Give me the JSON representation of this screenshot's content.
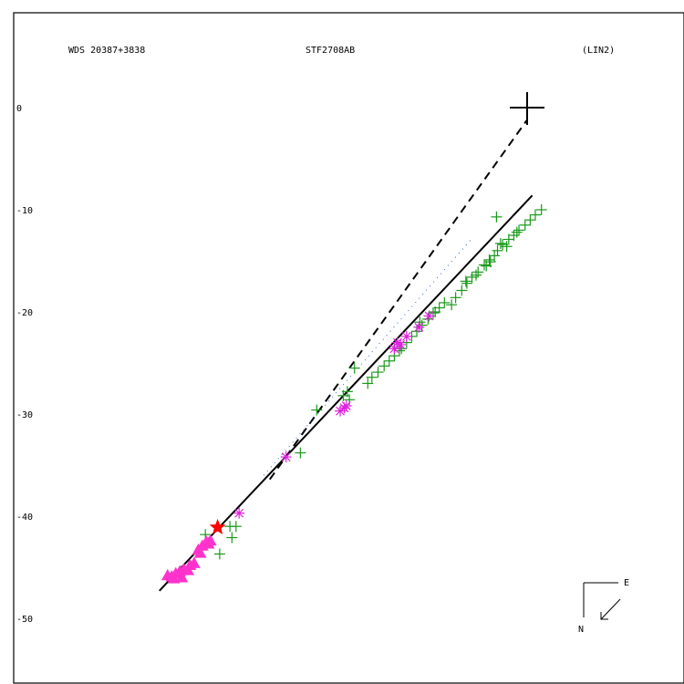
{
  "header": {
    "left": "WDS 20387+3838",
    "center": "STF2708AB",
    "right": "(LIN2)"
  },
  "compass": {
    "east": "E",
    "north": "N"
  },
  "colors": {
    "frame": "#000000",
    "obs_plus": "#1a9a1a",
    "obs_star": "#e020e0",
    "obs_triangle": "#ff33cc",
    "highlight": "#ff0000",
    "fit_line": "#000000",
    "primary": "#000000"
  },
  "chart_data": {
    "type": "scatter",
    "title": "STF2708AB",
    "xlabel": "",
    "ylabel": "",
    "ylim": [
      -57.5,
      9
    ],
    "xlim": [
      -53.5,
      13
    ],
    "y_ticks": [
      0,
      -10,
      -20,
      -30,
      -40,
      -50
    ],
    "primary_star": [
      0,
      0
    ],
    "fit_line": [
      [
        -36,
        -47.3
      ],
      [
        0.5,
        -8.6
      ]
    ],
    "dashed_line": [
      [
        -25.2,
        -36.4
      ],
      [
        0,
        -1.2
      ]
    ],
    "dotted_line": [
      [
        -25.8,
        -36.0
      ],
      [
        -5.4,
        -12.8
      ]
    ],
    "highlight_point": [
      -30.3,
      -41.1
    ],
    "plus_points": [
      [
        -29.1,
        -41.0
      ],
      [
        -28.5,
        -41.0
      ],
      [
        -28.9,
        -42.1
      ],
      [
        -30.1,
        -43.7
      ],
      [
        -31.5,
        -41.8
      ],
      [
        -22.2,
        -33.8
      ],
      [
        -20.6,
        -29.6
      ],
      [
        -18.0,
        -28.2
      ],
      [
        -17.4,
        -28.6
      ],
      [
        -16.9,
        -25.5
      ],
      [
        -17.6,
        -27.8
      ],
      [
        -15.6,
        -27.0
      ],
      [
        -15.2,
        -26.4
      ],
      [
        -14.6,
        -25.9
      ],
      [
        -14.0,
        -25.3
      ],
      [
        -13.5,
        -24.8
      ],
      [
        -13.0,
        -24.3
      ],
      [
        -12.3,
        -23.6
      ],
      [
        -11.8,
        -23.0
      ],
      [
        -11.3,
        -22.4
      ],
      [
        -10.8,
        -21.9
      ],
      [
        -10.3,
        -21.3
      ],
      [
        -9.7,
        -20.7
      ],
      [
        -9.2,
        -20.1
      ],
      [
        -8.6,
        -19.6
      ],
      [
        -8.1,
        -19.1
      ],
      [
        -7.4,
        -19.3
      ],
      [
        -7.0,
        -18.6
      ],
      [
        -6.4,
        -17.9
      ],
      [
        -5.9,
        -17.2
      ],
      [
        -5.4,
        -16.6
      ],
      [
        -4.8,
        -16.1
      ],
      [
        -4.2,
        -15.4
      ],
      [
        -3.7,
        -14.9
      ],
      [
        -3.2,
        -14.5
      ],
      [
        -3.6,
        -15.1
      ],
      [
        -2.9,
        -14.0
      ],
      [
        -2.4,
        -13.4
      ],
      [
        -1.8,
        -12.9
      ],
      [
        -1.3,
        -12.5
      ],
      [
        -0.8,
        -12.0
      ],
      [
        -0.2,
        -11.5
      ],
      [
        0.3,
        -11.0
      ],
      [
        0.8,
        -10.5
      ],
      [
        1.4,
        -10.0
      ],
      [
        -3.0,
        -10.7
      ],
      [
        -10.5,
        -21.0
      ],
      [
        -9.0,
        -20.0
      ],
      [
        -6.0,
        -17.0
      ],
      [
        -4.0,
        -15.5
      ],
      [
        -12.5,
        -23.8
      ],
      [
        -2.0,
        -13.6
      ],
      [
        -1.0,
        -12.2
      ],
      [
        -2.6,
        -13.3
      ],
      [
        -5.0,
        -16.4
      ]
    ],
    "star_points": [
      [
        -28.2,
        -39.7
      ],
      [
        -23.6,
        -34.2
      ],
      [
        -17.9,
        -29.4
      ],
      [
        -18.3,
        -29.7
      ],
      [
        -17.7,
        -29.2
      ],
      [
        -13.0,
        -23.6
      ],
      [
        -12.4,
        -23.2
      ],
      [
        -11.8,
        -22.4
      ],
      [
        -10.6,
        -21.5
      ],
      [
        -9.6,
        -20.4
      ],
      [
        -12.7,
        -23.0
      ]
    ],
    "triangle_points": [
      [
        -35.2,
        -45.8
      ],
      [
        -34.8,
        -45.9
      ],
      [
        -34.4,
        -45.6
      ],
      [
        -34.0,
        -45.4
      ],
      [
        -33.6,
        -45.2
      ],
      [
        -33.2,
        -45.3
      ],
      [
        -33.8,
        -46.0
      ],
      [
        -34.6,
        -46.1
      ],
      [
        -33.0,
        -44.8
      ],
      [
        -32.2,
        -43.3
      ],
      [
        -31.8,
        -42.9
      ],
      [
        -31.4,
        -42.5
      ],
      [
        -31.0,
        -42.4
      ],
      [
        -32.0,
        -43.6
      ],
      [
        -32.6,
        -44.6
      ],
      [
        -31.2,
        -42.7
      ]
    ]
  }
}
